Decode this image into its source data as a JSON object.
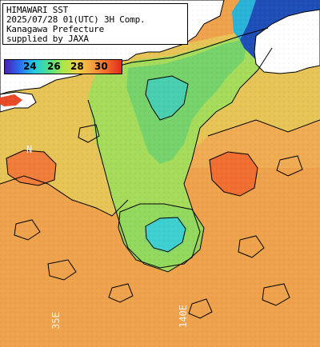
{
  "header": {
    "lines": [
      "HIMAWARI SST",
      "2025/07/28 01(UTC) 3H Comp.",
      "Kanagawa Prefecture",
      "supplied by JAXA"
    ]
  },
  "legend": {
    "ticks": [
      "24",
      "26",
      "28",
      "30"
    ],
    "tick_values": [
      24,
      26,
      28,
      30
    ],
    "range": [
      22.5,
      31.5
    ],
    "colors": [
      "#4b1fb0",
      "#2a6cf0",
      "#22c8e8",
      "#4ee08a",
      "#a8e84a",
      "#f0d048",
      "#f4a040",
      "#f06a2a",
      "#e02a1a"
    ]
  },
  "grid": {
    "lat_labels": [
      "N"
    ],
    "lon_labels": [
      "35E",
      "140E"
    ]
  },
  "colors": {
    "land": "#ffffff",
    "deep_sea": "#1e4fb8",
    "coastline": "#000000"
  }
}
